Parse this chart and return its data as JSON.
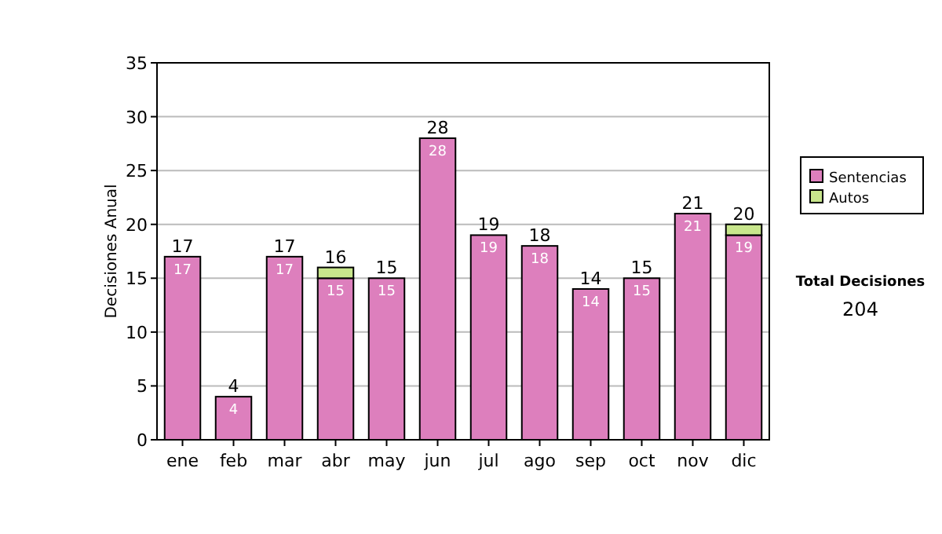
{
  "chart_data": {
    "type": "bar",
    "stacked": true,
    "ylabel": "Decisiones Anual",
    "categories": [
      "ene",
      "feb",
      "mar",
      "abr",
      "may",
      "jun",
      "jul",
      "ago",
      "sep",
      "oct",
      "nov",
      "dic"
    ],
    "series": [
      {
        "name": "Sentencias",
        "color": "#dd7fbd",
        "values": [
          17,
          4,
          17,
          15,
          15,
          28,
          19,
          18,
          14,
          15,
          21,
          19
        ],
        "value_labels": [
          "17",
          "4",
          "17",
          "15",
          "15",
          "28",
          "19",
          "18",
          "14",
          "15",
          "21",
          "19"
        ]
      },
      {
        "name": "Autos",
        "color": "#c8e68c",
        "values": [
          null,
          null,
          null,
          1,
          null,
          null,
          null,
          null,
          null,
          null,
          null,
          1
        ]
      }
    ],
    "totals": [
      "17",
      "4",
      "17",
      "16",
      "15",
      "28",
      "19",
      "18",
      "14",
      "15",
      "21",
      "20"
    ],
    "ylim": [
      0,
      35
    ],
    "yticks": [
      0,
      5,
      10,
      15,
      20,
      25,
      30,
      35
    ],
    "grid": "y",
    "legend": "right",
    "annotations": [
      "Total Decisiones",
      "204"
    ]
  }
}
